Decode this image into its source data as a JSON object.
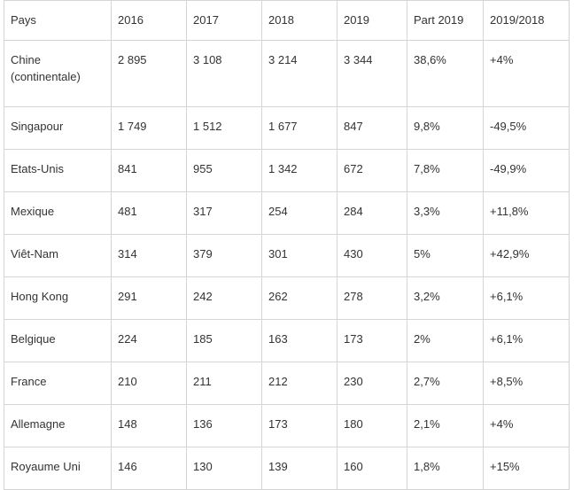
{
  "table": {
    "headers": [
      "Pays",
      "2016",
      "2017",
      "2018",
      "2019",
      "Part 2019",
      "2019/2018"
    ],
    "rows": [
      [
        "Chine\n(continentale)",
        "2 895",
        "3 108",
        "3 214",
        "3 344",
        "38,6%",
        "+4%"
      ],
      [
        "Singapour",
        "1 749",
        "1 512",
        "1 677",
        "847",
        "9,8%",
        "-49,5%"
      ],
      [
        "Etats-Unis",
        "841",
        "955",
        "1 342",
        "672",
        "7,8%",
        "-49,9%"
      ],
      [
        "Mexique",
        "481",
        "317",
        "254",
        "284",
        "3,3%",
        "+11,8%"
      ],
      [
        "Viêt-Nam",
        "314",
        "379",
        "301",
        "430",
        "5%",
        "+42,9%"
      ],
      [
        "Hong Kong",
        "291",
        "242",
        "262",
        "278",
        "3,2%",
        "+6,1%"
      ],
      [
        "Belgique",
        "224",
        "185",
        "163",
        "173",
        "2%",
        "+6,1%"
      ],
      [
        "France",
        "210",
        "211",
        "212",
        "230",
        "2,7%",
        "+8,5%"
      ],
      [
        "Allemagne",
        "148",
        "136",
        "173",
        "180",
        "2,1%",
        "+4%"
      ],
      [
        "Royaume Uni",
        "146",
        "130",
        "139",
        "160",
        "1,8%",
        "+15%"
      ]
    ]
  }
}
